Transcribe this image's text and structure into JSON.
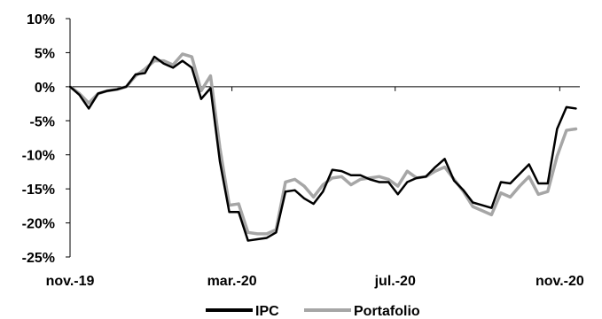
{
  "chart_data": {
    "type": "line",
    "title": "",
    "xlabel": "",
    "ylabel": "",
    "ylim": [
      -25,
      10
    ],
    "y_ticks": [
      10,
      5,
      0,
      -5,
      -10,
      -15,
      -20,
      -25
    ],
    "y_tick_labels": [
      "10%",
      "5%",
      "0%",
      "-5%",
      "-10%",
      "-15%",
      "-20%",
      "-25%"
    ],
    "x_range": [
      "2019-11-01",
      "2020-11-16"
    ],
    "x_ticks": [
      {
        "date": "2019-11-01",
        "label": "nov.-19"
      },
      {
        "date": "2020-03-01",
        "label": "mar.-20"
      },
      {
        "date": "2020-07-01",
        "label": "jul.-20"
      },
      {
        "date": "2020-11-01",
        "label": "nov.-20"
      }
    ],
    "grid": false,
    "legend_position": "bottom",
    "colors": {
      "IPC": "#000000",
      "Portafolio": "#a6a6a6"
    },
    "series": [
      {
        "name": "IPC",
        "color": "#000000",
        "points": [
          [
            "2019-11-01",
            0.0
          ],
          [
            "2019-11-08",
            -1.2
          ],
          [
            "2019-11-15",
            -3.2
          ],
          [
            "2019-11-22",
            -1.0
          ],
          [
            "2019-11-29",
            -0.6
          ],
          [
            "2019-12-06",
            -0.4
          ],
          [
            "2019-12-13",
            0.0
          ],
          [
            "2019-12-20",
            1.8
          ],
          [
            "2019-12-27",
            2.0
          ],
          [
            "2020-01-03",
            4.4
          ],
          [
            "2020-01-10",
            3.4
          ],
          [
            "2020-01-17",
            2.8
          ],
          [
            "2020-01-24",
            3.8
          ],
          [
            "2020-01-31",
            2.8
          ],
          [
            "2020-02-07",
            -1.8
          ],
          [
            "2020-02-14",
            -0.2
          ],
          [
            "2020-02-21",
            -11.0
          ],
          [
            "2020-02-28",
            -18.4
          ],
          [
            "2020-03-06",
            -18.4
          ],
          [
            "2020-03-13",
            -22.6
          ],
          [
            "2020-03-20",
            -22.4
          ],
          [
            "2020-03-27",
            -22.2
          ],
          [
            "2020-04-03",
            -21.4
          ],
          [
            "2020-04-10",
            -15.4
          ],
          [
            "2020-04-17",
            -15.2
          ],
          [
            "2020-04-24",
            -16.4
          ],
          [
            "2020-05-01",
            -17.2
          ],
          [
            "2020-05-08",
            -15.4
          ],
          [
            "2020-05-15",
            -12.2
          ],
          [
            "2020-05-22",
            -12.4
          ],
          [
            "2020-05-29",
            -13.0
          ],
          [
            "2020-06-05",
            -13.0
          ],
          [
            "2020-06-12",
            -13.6
          ],
          [
            "2020-06-19",
            -14.0
          ],
          [
            "2020-06-26",
            -14.0
          ],
          [
            "2020-07-03",
            -15.8
          ],
          [
            "2020-07-10",
            -14.0
          ],
          [
            "2020-07-17",
            -13.4
          ],
          [
            "2020-07-24",
            -13.2
          ],
          [
            "2020-07-31",
            -11.8
          ],
          [
            "2020-08-07",
            -10.6
          ],
          [
            "2020-08-14",
            -13.8
          ],
          [
            "2020-08-21",
            -15.2
          ],
          [
            "2020-08-28",
            -17.0
          ],
          [
            "2020-09-04",
            -17.4
          ],
          [
            "2020-09-11",
            -17.8
          ],
          [
            "2020-09-18",
            -14.0
          ],
          [
            "2020-09-25",
            -14.2
          ],
          [
            "2020-10-02",
            -12.8
          ],
          [
            "2020-10-09",
            -11.4
          ],
          [
            "2020-10-16",
            -14.2
          ],
          [
            "2020-10-23",
            -14.2
          ],
          [
            "2020-10-30",
            -6.2
          ],
          [
            "2020-11-06",
            -3.0
          ],
          [
            "2020-11-13",
            -3.2
          ]
        ]
      },
      {
        "name": "Portafolio",
        "color": "#a6a6a6",
        "points": [
          [
            "2019-11-01",
            0.0
          ],
          [
            "2019-11-08",
            -1.0
          ],
          [
            "2019-11-15",
            -2.4
          ],
          [
            "2019-11-22",
            -1.0
          ],
          [
            "2019-11-29",
            -0.6
          ],
          [
            "2019-12-06",
            -0.4
          ],
          [
            "2019-12-13",
            0.0
          ],
          [
            "2019-12-20",
            1.6
          ],
          [
            "2019-12-27",
            2.6
          ],
          [
            "2020-01-03",
            3.8
          ],
          [
            "2020-01-10",
            3.8
          ],
          [
            "2020-01-17",
            3.2
          ],
          [
            "2020-01-24",
            4.8
          ],
          [
            "2020-01-31",
            4.4
          ],
          [
            "2020-02-07",
            -0.6
          ],
          [
            "2020-02-14",
            1.6
          ],
          [
            "2020-02-21",
            -9.0
          ],
          [
            "2020-02-28",
            -17.4
          ],
          [
            "2020-03-06",
            -17.2
          ],
          [
            "2020-03-13",
            -21.4
          ],
          [
            "2020-03-20",
            -21.6
          ],
          [
            "2020-03-27",
            -21.6
          ],
          [
            "2020-04-03",
            -21.0
          ],
          [
            "2020-04-10",
            -14.0
          ],
          [
            "2020-04-17",
            -13.6
          ],
          [
            "2020-04-24",
            -14.6
          ],
          [
            "2020-05-01",
            -16.2
          ],
          [
            "2020-05-08",
            -14.4
          ],
          [
            "2020-05-15",
            -13.4
          ],
          [
            "2020-05-22",
            -13.2
          ],
          [
            "2020-05-29",
            -14.4
          ],
          [
            "2020-06-05",
            -13.6
          ],
          [
            "2020-06-12",
            -13.4
          ],
          [
            "2020-06-19",
            -13.2
          ],
          [
            "2020-06-26",
            -13.6
          ],
          [
            "2020-07-03",
            -14.6
          ],
          [
            "2020-07-10",
            -12.4
          ],
          [
            "2020-07-17",
            -13.4
          ],
          [
            "2020-07-24",
            -13.2
          ],
          [
            "2020-07-31",
            -12.4
          ],
          [
            "2020-08-07",
            -11.8
          ],
          [
            "2020-08-14",
            -13.6
          ],
          [
            "2020-08-21",
            -15.4
          ],
          [
            "2020-08-28",
            -17.6
          ],
          [
            "2020-09-04",
            -18.2
          ],
          [
            "2020-09-11",
            -18.8
          ],
          [
            "2020-09-18",
            -15.6
          ],
          [
            "2020-09-25",
            -16.2
          ],
          [
            "2020-10-02",
            -14.6
          ],
          [
            "2020-10-09",
            -13.2
          ],
          [
            "2020-10-16",
            -15.8
          ],
          [
            "2020-10-23",
            -15.4
          ],
          [
            "2020-10-30",
            -10.2
          ],
          [
            "2020-11-06",
            -6.4
          ],
          [
            "2020-11-13",
            -6.2
          ]
        ]
      }
    ]
  }
}
